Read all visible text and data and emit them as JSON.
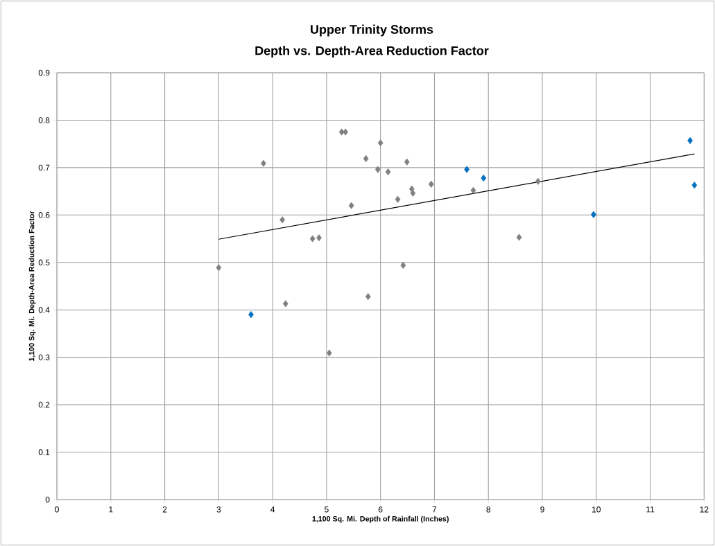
{
  "chart_data": {
    "type": "scatter",
    "title": "Upper Trinity Storms",
    "subtitle": "Depth vs. Depth-Area Reduction Factor",
    "xlabel": "1,100 Sq. Mi. Depth of Rainfall  (Inches)",
    "ylabel": "1,100 Sq. Mi. Depth-Area Reduction  Factor",
    "xlim": [
      0,
      12
    ],
    "ylim": [
      0,
      0.9
    ],
    "xticks": [
      0,
      1,
      2,
      3,
      4,
      5,
      6,
      7,
      8,
      9,
      10,
      11,
      12
    ],
    "yticks": [
      0,
      0.1,
      0.2,
      0.3,
      0.4,
      0.5,
      0.6,
      0.7,
      0.8,
      0.9
    ],
    "grid": true,
    "marker": "diamond",
    "series": [
      {
        "color": "#808080",
        "x": [
          3.0,
          3.83,
          4.18,
          4.74,
          4.86,
          5.28,
          5.35,
          5.46,
          5.73,
          5.95,
          6.0,
          6.14,
          6.32,
          6.49,
          6.42,
          6.58,
          6.6,
          6.94,
          7.72,
          5.77,
          4.24,
          5.05,
          8.92,
          8.57
        ],
        "values": [
          0.489,
          0.709,
          0.59,
          0.55,
          0.552,
          0.775,
          0.775,
          0.62,
          0.719,
          0.696,
          0.752,
          0.691,
          0.633,
          0.712,
          0.494,
          0.655,
          0.646,
          0.665,
          0.652,
          0.428,
          0.413,
          0.309,
          0.671,
          0.553
        ]
      },
      {
        "color": "#0070c0",
        "x": [
          3.6,
          7.6,
          7.91,
          9.95,
          11.74,
          11.82
        ],
        "values": [
          0.39,
          0.696,
          0.678,
          0.601,
          0.757,
          0.663
        ]
      },
      {
        "type": "line",
        "marker": "none",
        "color": "#000000",
        "x": [
          3.0,
          11.82
        ],
        "values": [
          0.549,
          0.729
        ]
      }
    ]
  }
}
